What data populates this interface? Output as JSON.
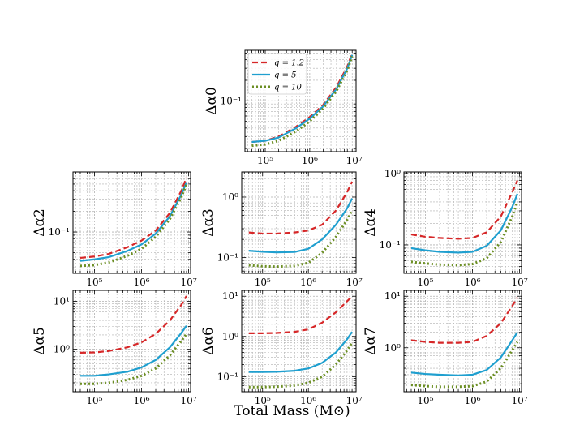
{
  "figure": {
    "xlabel": "Total Mass (M⊙)"
  },
  "colors": {
    "q12": "#d62728",
    "q5": "#1f9fcf",
    "q10": "#6b8e23",
    "grid": "#b0b0b0",
    "axis": "#000000"
  },
  "chart_data": [
    {
      "type": "line",
      "ylabel": "Δα0",
      "xscale": "log",
      "yscale": "log",
      "xlim": [
        35000,
        11000000
      ],
      "ylim": [
        0.018,
        0.55
      ],
      "x": [
        50000,
        100000,
        200000,
        500000,
        1000000,
        2000000,
        4000000,
        7000000,
        9000000
      ],
      "xticks": [
        {
          "v": 100000,
          "label": "10⁵"
        },
        {
          "v": 1000000,
          "label": "10⁶"
        },
        {
          "v": 10000000,
          "label": "10⁷"
        }
      ],
      "yticks": [
        {
          "v": 0.1,
          "label": "10⁻¹"
        }
      ],
      "legend": true,
      "series": [
        {
          "name": "q = 1.2",
          "style": "dashed",
          "color": "#d62728",
          "values": [
            0.025,
            0.026,
            0.03,
            0.042,
            0.058,
            0.087,
            0.16,
            0.32,
            0.5
          ]
        },
        {
          "name": "q = 5",
          "style": "solid",
          "color": "#1f9fcf",
          "values": [
            0.025,
            0.026,
            0.029,
            0.04,
            0.055,
            0.083,
            0.15,
            0.3,
            0.47
          ]
        },
        {
          "name": "q = 10",
          "style": "dotted",
          "color": "#6b8e23",
          "values": [
            0.022,
            0.023,
            0.026,
            0.036,
            0.05,
            0.077,
            0.14,
            0.28,
            0.45
          ]
        }
      ]
    },
    {
      "type": "line",
      "ylabel": "Δα2",
      "xscale": "log",
      "yscale": "log",
      "xlim": [
        35000,
        11000000
      ],
      "ylim": [
        0.025,
        0.75
      ],
      "x": [
        50000,
        100000,
        200000,
        500000,
        1000000,
        2000000,
        4000000,
        7000000,
        9000000
      ],
      "xticks": [
        {
          "v": 100000,
          "label": "10⁵"
        },
        {
          "v": 1000000,
          "label": "10⁶"
        },
        {
          "v": 10000000,
          "label": "10⁷"
        }
      ],
      "yticks": [
        {
          "v": 0.1,
          "label": "10⁻¹"
        }
      ],
      "series": [
        {
          "name": "q = 1.2",
          "style": "dashed",
          "color": "#d62728",
          "values": [
            0.042,
            0.044,
            0.048,
            0.06,
            0.075,
            0.105,
            0.19,
            0.4,
            0.62
          ]
        },
        {
          "name": "q = 5",
          "style": "solid",
          "color": "#1f9fcf",
          "values": [
            0.038,
            0.04,
            0.043,
            0.053,
            0.066,
            0.095,
            0.17,
            0.35,
            0.53
          ]
        },
        {
          "name": "q = 10",
          "style": "dotted",
          "color": "#6b8e23",
          "values": [
            0.032,
            0.033,
            0.036,
            0.045,
            0.057,
            0.085,
            0.155,
            0.32,
            0.5
          ]
        }
      ]
    },
    {
      "type": "line",
      "ylabel": "Δα3",
      "xscale": "log",
      "yscale": "log",
      "xlim": [
        35000,
        11000000
      ],
      "ylim": [
        0.055,
        2.6
      ],
      "x": [
        50000,
        100000,
        200000,
        500000,
        1000000,
        2000000,
        4000000,
        7000000,
        9000000
      ],
      "xticks": [
        {
          "v": 100000,
          "label": "10⁵"
        },
        {
          "v": 1000000,
          "label": "10⁶"
        },
        {
          "v": 10000000,
          "label": "10⁷"
        }
      ],
      "yticks": [
        {
          "v": 0.1,
          "label": "10⁻¹"
        },
        {
          "v": 1,
          "label": "10⁰"
        }
      ],
      "series": [
        {
          "name": "q = 1.2",
          "style": "dashed",
          "color": "#d62728",
          "values": [
            0.26,
            0.25,
            0.25,
            0.26,
            0.28,
            0.35,
            0.6,
            1.2,
            1.8
          ]
        },
        {
          "name": "q = 5",
          "style": "solid",
          "color": "#1f9fcf",
          "values": [
            0.13,
            0.125,
            0.122,
            0.124,
            0.14,
            0.2,
            0.35,
            0.65,
            0.95
          ]
        },
        {
          "name": "q = 10",
          "style": "dotted",
          "color": "#6b8e23",
          "values": [
            0.075,
            0.072,
            0.071,
            0.073,
            0.082,
            0.12,
            0.22,
            0.42,
            0.6
          ]
        }
      ]
    },
    {
      "type": "line",
      "ylabel": "Δα4",
      "xscale": "log",
      "yscale": "log",
      "xlim": [
        35000,
        11000000
      ],
      "ylim": [
        0.04,
        1.05
      ],
      "x": [
        50000,
        100000,
        200000,
        500000,
        1000000,
        2000000,
        4000000,
        7000000,
        9000000
      ],
      "xticks": [
        {
          "v": 100000,
          "label": "10⁵"
        },
        {
          "v": 1000000,
          "label": "10⁶"
        },
        {
          "v": 10000000,
          "label": "10⁷"
        }
      ],
      "yticks": [
        {
          "v": 0.1,
          "label": "10⁻¹"
        },
        {
          "v": 1,
          "label": "10⁰"
        }
      ],
      "series": [
        {
          "name": "q = 1.2",
          "style": "dashed",
          "color": "#d62728",
          "values": [
            0.14,
            0.13,
            0.125,
            0.122,
            0.125,
            0.15,
            0.25,
            0.55,
            0.8
          ]
        },
        {
          "name": "q = 5",
          "style": "solid",
          "color": "#1f9fcf",
          "values": [
            0.09,
            0.084,
            0.08,
            0.078,
            0.08,
            0.097,
            0.16,
            0.34,
            0.52
          ]
        },
        {
          "name": "q = 10",
          "style": "dotted",
          "color": "#6b8e23",
          "values": [
            0.058,
            0.055,
            0.053,
            0.052,
            0.054,
            0.065,
            0.11,
            0.25,
            0.4
          ]
        }
      ]
    },
    {
      "type": "line",
      "ylabel": "Δα5",
      "xscale": "log",
      "yscale": "log",
      "xlim": [
        35000,
        11000000
      ],
      "ylim": [
        0.13,
        17
      ],
      "x": [
        50000,
        100000,
        200000,
        500000,
        1000000,
        2000000,
        4000000,
        7000000,
        9000000
      ],
      "xticks": [
        {
          "v": 100000,
          "label": "10⁵"
        },
        {
          "v": 1000000,
          "label": "10⁶"
        },
        {
          "v": 10000000,
          "label": "10⁷"
        }
      ],
      "yticks": [
        {
          "v": 1,
          "label": "10⁰"
        },
        {
          "v": 10,
          "label": "10¹"
        }
      ],
      "series": [
        {
          "name": "q = 1.2",
          "style": "dashed",
          "color": "#d62728",
          "values": [
            0.85,
            0.86,
            0.92,
            1.1,
            1.4,
            2.1,
            4.0,
            8.5,
            13.0
          ]
        },
        {
          "name": "q = 5",
          "style": "solid",
          "color": "#1f9fcf",
          "values": [
            0.28,
            0.28,
            0.3,
            0.34,
            0.42,
            0.6,
            1.1,
            2.2,
            3.1
          ]
        },
        {
          "name": "q = 10",
          "style": "dotted",
          "color": "#6b8e23",
          "values": [
            0.19,
            0.19,
            0.2,
            0.23,
            0.28,
            0.4,
            0.75,
            1.5,
            2.1
          ]
        }
      ]
    },
    {
      "type": "line",
      "ylabel": "Δα6",
      "xscale": "log",
      "yscale": "log",
      "xlim": [
        35000,
        11000000
      ],
      "ylim": [
        0.042,
        14
      ],
      "x": [
        50000,
        100000,
        200000,
        500000,
        1000000,
        2000000,
        4000000,
        7000000,
        9000000
      ],
      "xticks": [
        {
          "v": 100000,
          "label": "10⁵"
        },
        {
          "v": 1000000,
          "label": "10⁶"
        },
        {
          "v": 10000000,
          "label": "10⁷"
        }
      ],
      "yticks": [
        {
          "v": 0.1,
          "label": "10⁻¹"
        },
        {
          "v": 1,
          "label": "10⁰"
        },
        {
          "v": 10,
          "label": "10¹"
        }
      ],
      "series": [
        {
          "name": "q = 1.2",
          "style": "dashed",
          "color": "#d62728",
          "values": [
            1.2,
            1.2,
            1.22,
            1.3,
            1.5,
            2.2,
            4.0,
            7.5,
            10.0
          ]
        },
        {
          "name": "q = 5",
          "style": "solid",
          "color": "#1f9fcf",
          "values": [
            0.13,
            0.13,
            0.132,
            0.14,
            0.16,
            0.22,
            0.4,
            0.85,
            1.3
          ]
        },
        {
          "name": "q = 10",
          "style": "dotted",
          "color": "#6b8e23",
          "values": [
            0.055,
            0.055,
            0.056,
            0.06,
            0.07,
            0.1,
            0.2,
            0.45,
            0.7
          ]
        }
      ]
    },
    {
      "type": "line",
      "ylabel": "Δα7",
      "xscale": "log",
      "yscale": "log",
      "xlim": [
        35000,
        11000000
      ],
      "ylim": [
        0.14,
        13
      ],
      "x": [
        50000,
        100000,
        200000,
        500000,
        1000000,
        2000000,
        4000000,
        7000000,
        9000000
      ],
      "xticks": [
        {
          "v": 100000,
          "label": "10⁵"
        },
        {
          "v": 1000000,
          "label": "10⁶"
        },
        {
          "v": 10000000,
          "label": "10⁷"
        }
      ],
      "yticks": [
        {
          "v": 1,
          "label": "10⁰"
        },
        {
          "v": 10,
          "label": "10¹"
        }
      ],
      "series": [
        {
          "name": "q = 1.2",
          "style": "dashed",
          "color": "#d62728",
          "values": [
            1.4,
            1.3,
            1.25,
            1.25,
            1.3,
            1.7,
            3.0,
            6.5,
            9.5
          ]
        },
        {
          "name": "q = 5",
          "style": "solid",
          "color": "#1f9fcf",
          "values": [
            0.33,
            0.31,
            0.3,
            0.29,
            0.3,
            0.37,
            0.65,
            1.4,
            2.0
          ]
        },
        {
          "name": "q = 10",
          "style": "dotted",
          "color": "#6b8e23",
          "values": [
            0.19,
            0.18,
            0.175,
            0.175,
            0.18,
            0.22,
            0.4,
            0.9,
            1.3
          ]
        }
      ]
    }
  ]
}
